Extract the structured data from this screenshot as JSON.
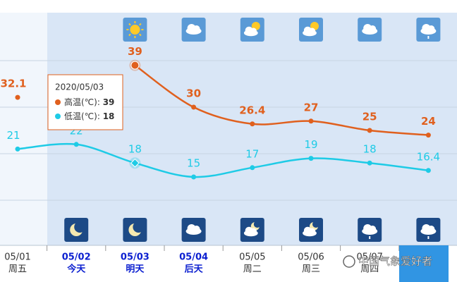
{
  "chart_data": {
    "type": "line",
    "categories": [
      "05/01",
      "05/02",
      "05/03",
      "05/04",
      "05/05",
      "05/06",
      "05/07",
      null
    ],
    "weekdays": [
      "周五",
      "今天",
      "明天",
      "后天",
      "周二",
      "周三",
      "周四",
      null
    ],
    "series": [
      {
        "color": "#e0601e",
        "values": [
          32.1,
          null,
          39,
          30,
          26.4,
          27,
          25,
          24
        ]
      },
      {
        "color": "#1ecbe6",
        "values": [
          21,
          22,
          18,
          15,
          17,
          19,
          18,
          16.4
        ]
      }
    ],
    "ylim": [
      0,
      50
    ],
    "yticks": [
      10,
      20,
      30,
      40
    ],
    "grid": true,
    "tooltip": {
      "title": "2020/05/03",
      "rows": [
        {
          "label": "高温(℃): "
        },
        {
          "label": "低温(℃): "
        }
      ]
    },
    "watermark": "中国气象爱好者"
  }
}
